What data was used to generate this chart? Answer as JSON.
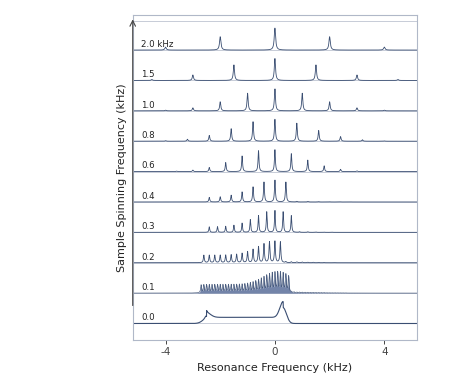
{
  "spinning_freqs": [
    0.0,
    0.1,
    0.2,
    0.3,
    0.4,
    0.6,
    0.8,
    1.0,
    1.5,
    2.0
  ],
  "freq_labels": [
    "0.0",
    "0.1",
    "0.2",
    "0.3",
    "0.4",
    "0.6",
    "0.8",
    "1.0",
    "1.5",
    "2.0 kHz"
  ],
  "x_range": [
    -5.2,
    5.2
  ],
  "x_ticks": [
    -4,
    0,
    4
  ],
  "x_label": "Resonance Frequency (kHz)",
  "y_label": "Sample Spinning Frequency (kHz)",
  "line_color": "#3a4e72",
  "fill_color": "#5a6e9a",
  "background_color": "#ffffff",
  "border_color": "#b0b8c8",
  "figsize": [
    4.74,
    3.78
  ],
  "dpi": 100
}
